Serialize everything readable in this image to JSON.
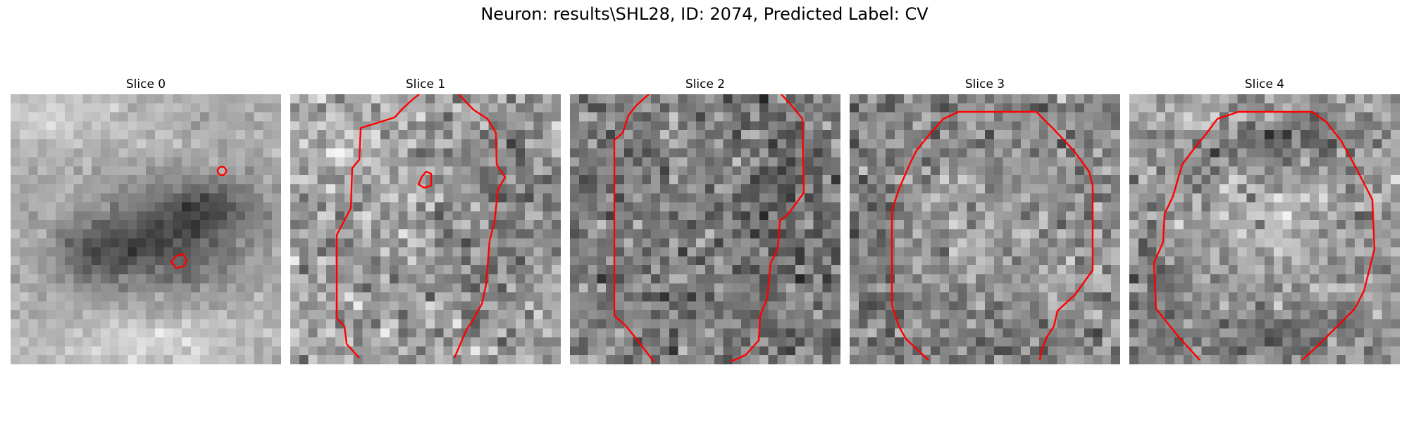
{
  "figure": {
    "suptitle": "Neuron: results\\SHL28, ID: 2074, Predicted Label: CV"
  },
  "colors": {
    "contour": "#ff0000",
    "background": "#ffffff"
  },
  "slices": [
    {
      "title": "Slice 0"
    },
    {
      "title": "Slice 1"
    },
    {
      "title": "Slice 2"
    },
    {
      "title": "Slice 3"
    },
    {
      "title": "Slice 4"
    }
  ]
}
